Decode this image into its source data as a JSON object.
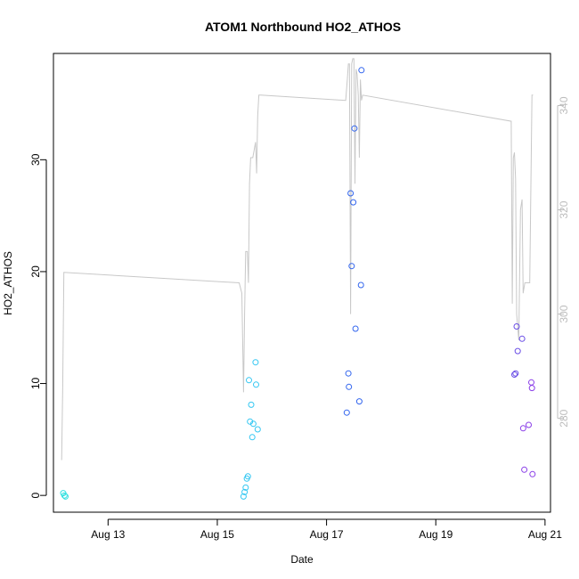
{
  "chart_data": {
    "type": "scatter",
    "title": "ATOM1 Northbound HO2_ATHOS",
    "xlabel": "Date",
    "ylabel": "HO2_ATHOS",
    "x_ticks": [
      "Aug 13",
      "Aug 15",
      "Aug 17",
      "Aug 19",
      "Aug 21"
    ],
    "x_tick_days": [
      13,
      15,
      17,
      19,
      21
    ],
    "xlim": [
      12.0,
      21.1
    ],
    "ylim": [
      -1.5,
      39.5
    ],
    "y_ticks": [
      0,
      10,
      20,
      30
    ],
    "y2lim": [
      262,
      350
    ],
    "y2_ticks": [
      280,
      300,
      320,
      340
    ],
    "grid": false,
    "right_axis_color": "#bdbdbd",
    "scatter_points": [
      {
        "x": 12.18,
        "y": 0.2,
        "color": "#33e0e0"
      },
      {
        "x": 12.2,
        "y": 0.0,
        "color": "#33e0e0"
      },
      {
        "x": 12.22,
        "y": -0.1,
        "color": "#33e0e0"
      },
      {
        "x": 15.48,
        "y": -0.1,
        "color": "#33c7f2"
      },
      {
        "x": 15.5,
        "y": 0.3,
        "color": "#33c7f2"
      },
      {
        "x": 15.52,
        "y": 0.7,
        "color": "#33c7f2"
      },
      {
        "x": 15.54,
        "y": 1.5,
        "color": "#33c7f2"
      },
      {
        "x": 15.56,
        "y": 1.7,
        "color": "#33c7f2"
      },
      {
        "x": 15.58,
        "y": 10.3,
        "color": "#33c7f2"
      },
      {
        "x": 15.6,
        "y": 6.6,
        "color": "#33c7f2"
      },
      {
        "x": 15.62,
        "y": 8.1,
        "color": "#33c7f2"
      },
      {
        "x": 15.64,
        "y": 5.2,
        "color": "#33c7f2"
      },
      {
        "x": 15.66,
        "y": 6.4,
        "color": "#33c7f2"
      },
      {
        "x": 15.7,
        "y": 11.9,
        "color": "#33c7f2"
      },
      {
        "x": 15.71,
        "y": 9.9,
        "color": "#33c7f2"
      },
      {
        "x": 15.74,
        "y": 5.9,
        "color": "#33c7f2"
      },
      {
        "x": 17.37,
        "y": 7.4,
        "color": "#3366ee"
      },
      {
        "x": 17.4,
        "y": 10.9,
        "color": "#3366ee"
      },
      {
        "x": 17.41,
        "y": 9.7,
        "color": "#3366ee"
      },
      {
        "x": 17.44,
        "y": 27.0,
        "color": "#3366ee"
      },
      {
        "x": 17.46,
        "y": 20.5,
        "color": "#3366ee"
      },
      {
        "x": 17.49,
        "y": 26.2,
        "color": "#3366ee"
      },
      {
        "x": 17.51,
        "y": 32.8,
        "color": "#3366ee"
      },
      {
        "x": 17.53,
        "y": 14.9,
        "color": "#3366ee"
      },
      {
        "x": 17.6,
        "y": 8.4,
        "color": "#3366ee"
      },
      {
        "x": 17.63,
        "y": 18.8,
        "color": "#3366ee"
      },
      {
        "x": 17.64,
        "y": 38.0,
        "color": "#3366ee"
      },
      {
        "x": 20.44,
        "y": 10.8,
        "color": "#6a4ee6"
      },
      {
        "x": 20.46,
        "y": 10.9,
        "color": "#6a4ee6"
      },
      {
        "x": 20.48,
        "y": 15.1,
        "color": "#6a4ee6"
      },
      {
        "x": 20.5,
        "y": 12.9,
        "color": "#6a4ee6"
      },
      {
        "x": 20.58,
        "y": 14.0,
        "color": "#6a4ee6"
      },
      {
        "x": 20.6,
        "y": 6.0,
        "color": "#8a3ee8"
      },
      {
        "x": 20.62,
        "y": 2.3,
        "color": "#8a3ee8"
      },
      {
        "x": 20.7,
        "y": 6.3,
        "color": "#8a3ee8"
      },
      {
        "x": 20.75,
        "y": 10.1,
        "color": "#8a3ee8"
      },
      {
        "x": 20.76,
        "y": 9.6,
        "color": "#8a3ee8"
      },
      {
        "x": 20.77,
        "y": 1.9,
        "color": "#8a3ee8"
      }
    ],
    "line_series": {
      "color": "#c8c8c8",
      "axis": "right",
      "x": [
        12.15,
        12.17,
        12.19,
        15.4,
        15.45,
        15.48,
        15.5,
        15.52,
        15.55,
        15.57,
        15.59,
        15.61,
        15.65,
        15.7,
        15.72,
        15.74,
        15.76,
        15.8,
        17.35,
        17.38,
        17.4,
        17.42,
        17.44,
        17.46,
        17.48,
        17.5,
        17.52,
        17.54,
        17.56,
        17.58,
        17.6,
        17.62,
        17.64,
        17.66,
        20.38,
        20.4,
        20.42,
        20.44,
        20.46,
        20.48,
        20.52,
        20.55,
        20.58,
        20.6,
        20.63,
        20.66,
        20.7,
        20.72,
        20.76,
        20.78
      ],
      "y": [
        272,
        286,
        308,
        306,
        304,
        285,
        300,
        312,
        312,
        306,
        325,
        330,
        330,
        333,
        327,
        338,
        342,
        342,
        341,
        345,
        348,
        348,
        300,
        348,
        349,
        349,
        325,
        347,
        346,
        342,
        330,
        345,
        341,
        342,
        337,
        302,
        330,
        331,
        326,
        300,
        295,
        320,
        322,
        304,
        306,
        306,
        306,
        306,
        342,
        342
      ]
    }
  }
}
